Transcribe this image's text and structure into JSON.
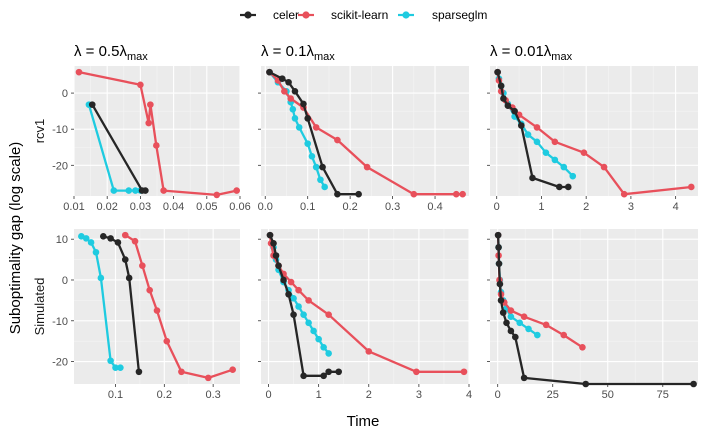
{
  "chart_data": {
    "type": "line",
    "xlabel": "Time",
    "ylabel": "Suboptimality gap (log scale)",
    "legend": {
      "position": "top-center",
      "entries": [
        {
          "name": "celer",
          "color": "#262626"
        },
        {
          "name": "scikit-learn",
          "color": "#e8505b"
        },
        {
          "name": "sparseglm",
          "color": "#1fcbe0"
        }
      ]
    },
    "columns": [
      {
        "title_prefix": "λ = 0.5λ",
        "title_sub": "max"
      },
      {
        "title_prefix": "λ = 0.1λ",
        "title_sub": "max"
      },
      {
        "title_prefix": "λ = 0.01λ",
        "title_sub": "max"
      }
    ],
    "rows": [
      "rcv1",
      "Simulated"
    ],
    "panels": [
      {
        "row": 0,
        "col": 0,
        "xlim": [
          0.01,
          0.06
        ],
        "ylim": [
          -28.5,
          7.5
        ],
        "xticks": [
          0.01,
          0.02,
          0.03,
          0.04,
          0.05,
          0.06
        ],
        "xticklabels": [
          "0.01",
          "0.02",
          "0.03",
          "0.04",
          "0.05",
          "0.06"
        ],
        "yticks": [
          0,
          -10,
          -20
        ],
        "series": {
          "celer": [
            [
              0.0155,
              -3.2
            ],
            [
              0.0305,
              -27.0
            ],
            [
              0.0315,
              -27.0
            ]
          ],
          "scikit-learn": [
            [
              0.0115,
              5.8
            ],
            [
              0.03,
              2.3
            ],
            [
              0.0325,
              -8.3
            ],
            [
              0.033,
              -3.2
            ],
            [
              0.0348,
              -14.5
            ],
            [
              0.037,
              -27.0
            ],
            [
              0.053,
              -28.2
            ],
            [
              0.059,
              -27.0
            ]
          ],
          "sparseglm": [
            [
              0.0145,
              -3.2
            ],
            [
              0.022,
              -27.0
            ],
            [
              0.0265,
              -27.0
            ],
            [
              0.0285,
              -27.0
            ],
            [
              0.03,
              -27.0
            ]
          ]
        }
      },
      {
        "row": 0,
        "col": 1,
        "xlim": [
          -0.01,
          0.48
        ],
        "ylim": [
          -28.5,
          7.5
        ],
        "xticks": [
          0.0,
          0.1,
          0.2,
          0.3,
          0.4
        ],
        "xticklabels": [
          "0.0",
          "0.1",
          "0.2",
          "0.3",
          "0.4"
        ],
        "yticks": [
          0,
          -10,
          -20
        ],
        "series": {
          "celer": [
            [
              0.01,
              5.8
            ],
            [
              0.04,
              4.0
            ],
            [
              0.055,
              3.0
            ],
            [
              0.07,
              0.5
            ],
            [
              0.09,
              -3.0
            ],
            [
              0.1,
              -7.0
            ],
            [
              0.135,
              -20.5
            ],
            [
              0.17,
              -28.0
            ],
            [
              0.22,
              -28.0
            ]
          ],
          "scikit-learn": [
            [
              0.01,
              5.8
            ],
            [
              0.03,
              3.5
            ],
            [
              0.045,
              0.5
            ],
            [
              0.06,
              -1.5
            ],
            [
              0.09,
              -4.0
            ],
            [
              0.12,
              -9.5
            ],
            [
              0.17,
              -13.0
            ],
            [
              0.24,
              -20.5
            ],
            [
              0.35,
              -28.0
            ],
            [
              0.45,
              -28.0
            ],
            [
              0.465,
              -28.0
            ]
          ],
          "sparseglm": [
            [
              0.01,
              5.8
            ],
            [
              0.03,
              3.0
            ],
            [
              0.05,
              0.5
            ],
            [
              0.06,
              -2.5
            ],
            [
              0.065,
              -4.5
            ],
            [
              0.07,
              -7.0
            ],
            [
              0.08,
              -9.5
            ],
            [
              0.1,
              -14.0
            ],
            [
              0.11,
              -17.5
            ],
            [
              0.12,
              -20.5
            ],
            [
              0.13,
              -24.0
            ],
            [
              0.14,
              -26.0
            ]
          ]
        }
      },
      {
        "row": 0,
        "col": 2,
        "xlim": [
          -0.15,
          4.5
        ],
        "ylim": [
          -28.5,
          7.5
        ],
        "xticks": [
          0,
          1,
          2,
          3,
          4
        ],
        "xticklabels": [
          "0",
          "1",
          "2",
          "3",
          "4"
        ],
        "yticks": [
          0,
          -10,
          -20
        ],
        "series": {
          "celer": [
            [
              0.02,
              5.8
            ],
            [
              0.1,
              2.0
            ],
            [
              0.15,
              -1.5
            ],
            [
              0.25,
              -3.5
            ],
            [
              0.4,
              -5.0
            ],
            [
              0.55,
              -9.0
            ],
            [
              0.8,
              -23.5
            ],
            [
              1.4,
              -26.0
            ],
            [
              1.6,
              -26.0
            ]
          ],
          "scikit-learn": [
            [
              0.02,
              5.8
            ],
            [
              0.05,
              3.5
            ],
            [
              0.1,
              0.5
            ],
            [
              0.2,
              -2.0
            ],
            [
              0.35,
              -4.0
            ],
            [
              0.5,
              -6.0
            ],
            [
              0.9,
              -9.5
            ],
            [
              1.3,
              -13.5
            ],
            [
              1.95,
              -16.5
            ],
            [
              2.4,
              -20.5
            ],
            [
              2.85,
              -28.0
            ],
            [
              4.35,
              -26.0
            ]
          ],
          "sparseglm": [
            [
              0.02,
              5.8
            ],
            [
              0.05,
              4.0
            ],
            [
              0.1,
              2.0
            ],
            [
              0.15,
              0.0
            ],
            [
              0.25,
              -3.0
            ],
            [
              0.4,
              -6.5
            ],
            [
              0.55,
              -8.5
            ],
            [
              0.7,
              -11.5
            ],
            [
              0.9,
              -13.5
            ],
            [
              1.1,
              -16.5
            ],
            [
              1.3,
              -18.5
            ],
            [
              1.5,
              -20.5
            ],
            [
              1.7,
              -23.0
            ]
          ]
        }
      },
      {
        "row": 1,
        "col": 0,
        "xlim": [
          0.015,
          0.355
        ],
        "ylim": [
          -25.5,
          12.5
        ],
        "xticks": [
          0.1,
          0.2,
          0.3
        ],
        "xticklabels": [
          "0.1",
          "0.2",
          "0.3"
        ],
        "yticks": [
          10,
          0,
          -10,
          -20
        ],
        "series": {
          "celer": [
            [
              0.075,
              10.7
            ],
            [
              0.09,
              10.2
            ],
            [
              0.105,
              9.2
            ],
            [
              0.12,
              5.0
            ],
            [
              0.128,
              0.5
            ],
            [
              0.148,
              -22.5
            ]
          ],
          "scikit-learn": [
            [
              0.12,
              11.0
            ],
            [
              0.14,
              9.5
            ],
            [
              0.155,
              3.5
            ],
            [
              0.17,
              -2.5
            ],
            [
              0.185,
              -7.5
            ],
            [
              0.205,
              -15.0
            ],
            [
              0.235,
              -22.5
            ],
            [
              0.29,
              -24.0
            ],
            [
              0.34,
              -22.0
            ]
          ],
          "sparseglm": [
            [
              0.03,
              10.7
            ],
            [
              0.04,
              10.2
            ],
            [
              0.05,
              9.2
            ],
            [
              0.06,
              6.8
            ],
            [
              0.07,
              0.5
            ],
            [
              0.09,
              -19.8
            ],
            [
              0.1,
              -21.5
            ],
            [
              0.11,
              -21.5
            ]
          ]
        }
      },
      {
        "row": 1,
        "col": 1,
        "xlim": [
          -0.15,
          4.0
        ],
        "ylim": [
          -25.5,
          12.5
        ],
        "xticks": [
          0,
          1,
          2,
          3,
          4
        ],
        "xticklabels": [
          "0",
          "1",
          "2",
          "3",
          "4"
        ],
        "yticks": [
          10,
          0,
          -10,
          -20
        ],
        "series": {
          "celer": [
            [
              0.03,
              11.0
            ],
            [
              0.1,
              9.0
            ],
            [
              0.15,
              6.0
            ],
            [
              0.2,
              3.5
            ],
            [
              0.3,
              0.0
            ],
            [
              0.4,
              -3.5
            ],
            [
              0.5,
              -8.5
            ],
            [
              0.7,
              -23.5
            ],
            [
              1.1,
              -23.5
            ],
            [
              1.2,
              -22.5
            ],
            [
              1.4,
              -22.5
            ]
          ],
          "scikit-learn": [
            [
              0.03,
              11.0
            ],
            [
              0.05,
              9.0
            ],
            [
              0.1,
              6.0
            ],
            [
              0.2,
              3.5
            ],
            [
              0.3,
              1.5
            ],
            [
              0.45,
              -0.5
            ],
            [
              0.6,
              -2.5
            ],
            [
              0.8,
              -5.0
            ],
            [
              1.2,
              -8.5
            ],
            [
              2.0,
              -17.5
            ],
            [
              2.95,
              -22.5
            ],
            [
              3.9,
              -22.5
            ]
          ],
          "sparseglm": [
            [
              0.03,
              11.0
            ],
            [
              0.1,
              8.0
            ],
            [
              0.15,
              5.0
            ],
            [
              0.2,
              2.5
            ],
            [
              0.3,
              -0.5
            ],
            [
              0.4,
              -2.5
            ],
            [
              0.5,
              -4.5
            ],
            [
              0.6,
              -6.5
            ],
            [
              0.7,
              -8.5
            ],
            [
              0.8,
              -10.5
            ],
            [
              0.9,
              -12.5
            ],
            [
              1.0,
              -14.5
            ],
            [
              1.1,
              -16.5
            ],
            [
              1.2,
              -18.0
            ]
          ]
        }
      },
      {
        "row": 1,
        "col": 2,
        "xlim": [
          -3.5,
          91.0
        ],
        "ylim": [
          -25.5,
          12.5
        ],
        "xticks": [
          0,
          25,
          50,
          75
        ],
        "xticklabels": [
          "0",
          "25",
          "50",
          "75"
        ],
        "yticks": [
          10,
          0,
          -10,
          -20
        ],
        "series": {
          "celer": [
            [
              0.2,
              11.0
            ],
            [
              0.4,
              8.0
            ],
            [
              0.6,
              4.0
            ],
            [
              1.0,
              -1.0
            ],
            [
              1.5,
              -5.0
            ],
            [
              2.5,
              -8.0
            ],
            [
              4.0,
              -10.5
            ],
            [
              6.0,
              -12.5
            ],
            [
              8.0,
              -14.0
            ],
            [
              12.0,
              -24.0
            ],
            [
              40.0,
              -25.5
            ],
            [
              89.0,
              -25.5
            ]
          ],
          "scikit-learn": [
            [
              0.2,
              11.0
            ],
            [
              0.4,
              6.0
            ],
            [
              0.8,
              0.0
            ],
            [
              1.5,
              -3.5
            ],
            [
              3.0,
              -5.5
            ],
            [
              6.0,
              -7.5
            ],
            [
              12.0,
              -9.0
            ],
            [
              22.0,
              -11.0
            ],
            [
              30.0,
              -13.5
            ],
            [
              38.5,
              -16.5
            ]
          ],
          "sparseglm": [
            [
              0.2,
              11.0
            ],
            [
              0.4,
              8.0
            ],
            [
              0.6,
              4.0
            ],
            [
              1.0,
              0.0
            ],
            [
              1.5,
              -3.0
            ],
            [
              2.5,
              -5.0
            ],
            [
              4.0,
              -7.0
            ],
            [
              6.0,
              -9.0
            ],
            [
              10.0,
              -10.5
            ],
            [
              14.0,
              -12.0
            ],
            [
              18.0,
              -13.5
            ]
          ]
        }
      }
    ]
  }
}
